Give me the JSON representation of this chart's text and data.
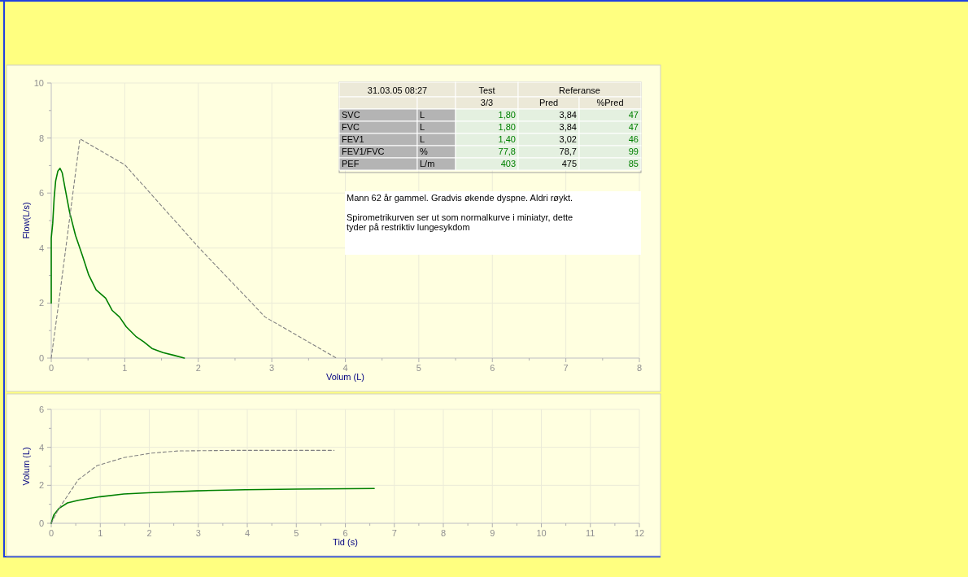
{
  "chart_data": [
    {
      "type": "line",
      "xlabel": "Volum (L)",
      "ylabel": "Flow(L/s)",
      "xlim": [
        0,
        8
      ],
      "ylim": [
        0,
        10
      ],
      "xticks": [
        0,
        1,
        2,
        3,
        4,
        5,
        6,
        7,
        8
      ],
      "yticks": [
        0,
        2,
        4,
        6,
        8,
        10
      ],
      "grid": true,
      "series": [
        {
          "color": "#008000",
          "line_style": "solid",
          "x": [
            0,
            0,
            0.02,
            0.04,
            0.06,
            0.09,
            0.12,
            0.15,
            0.19,
            0.25,
            0.33,
            0.42,
            0.51,
            0.61,
            0.74,
            0.83,
            0.93,
            1.02,
            1.15,
            1.26,
            1.37,
            1.52,
            1.67,
            1.81
          ],
          "values": [
            2,
            4.36,
            4.9,
            5.84,
            6.44,
            6.8,
            6.9,
            6.73,
            6.14,
            5.3,
            4.46,
            3.76,
            3.02,
            2.48,
            2.18,
            1.73,
            1.49,
            1.14,
            0.79,
            0.59,
            0.35,
            0.2,
            0.1,
            0
          ]
        },
        {
          "color": "#808080",
          "line_style": "dashed",
          "x": [
            0,
            0.1,
            0.39,
            1.0,
            2.01,
            2.91,
            3.88
          ],
          "values": [
            0,
            1.98,
            7.97,
            7.03,
            4.01,
            1.49,
            0
          ]
        }
      ]
    },
    {
      "type": "line",
      "xlabel": "Tid (s)",
      "ylabel": "Volum (L)",
      "xlim": [
        0,
        12
      ],
      "ylim": [
        0,
        6
      ],
      "xticks": [
        0,
        1,
        2,
        3,
        4,
        5,
        6,
        7,
        8,
        9,
        10,
        11,
        12
      ],
      "yticks": [
        0,
        2,
        4,
        6
      ],
      "grid": true,
      "series": [
        {
          "color": "#008000",
          "line_style": "solid",
          "x": [
            0,
            0.05,
            0.16,
            0.33,
            0.55,
            1.0,
            1.48,
            1.98,
            2.97,
            3.96,
            5.0,
            6.59
          ],
          "values": [
            0,
            0.43,
            0.79,
            1.07,
            1.21,
            1.4,
            1.54,
            1.61,
            1.71,
            1.77,
            1.8,
            1.83
          ]
        },
        {
          "color": "#808080",
          "line_style": "dashed",
          "x": [
            0,
            0.14,
            0.55,
            0.93,
            1.48,
            2.03,
            2.58,
            3.68,
            5.77
          ],
          "values": [
            0,
            0.71,
            2.29,
            3.03,
            3.46,
            3.69,
            3.81,
            3.84,
            3.84
          ]
        }
      ]
    },
    {
      "type": "other",
      "annotations": [
        "31.03.05 08:27",
        "Test",
        "Referanse",
        "3/3",
        "Pred",
        "%Pred",
        "SVC",
        "L",
        "1,80",
        "3,84",
        "47",
        "FVC",
        "L",
        "1,80",
        "3,84",
        "47",
        "FEV1",
        "L",
        "1,40",
        "3,02",
        "46",
        "FEV1/FVC",
        "%",
        "77,8",
        "78,7",
        "99",
        "PEF",
        "L/m",
        "403",
        "475",
        "85",
        "Mann 62 år gammel. Gradvis økende dyspne. Aldri røykt.",
        "Spirometrikurven ser ut som normalkurve i miniatyr, dette tyder på restriktiv lungesykdom"
      ]
    }
  ]
}
